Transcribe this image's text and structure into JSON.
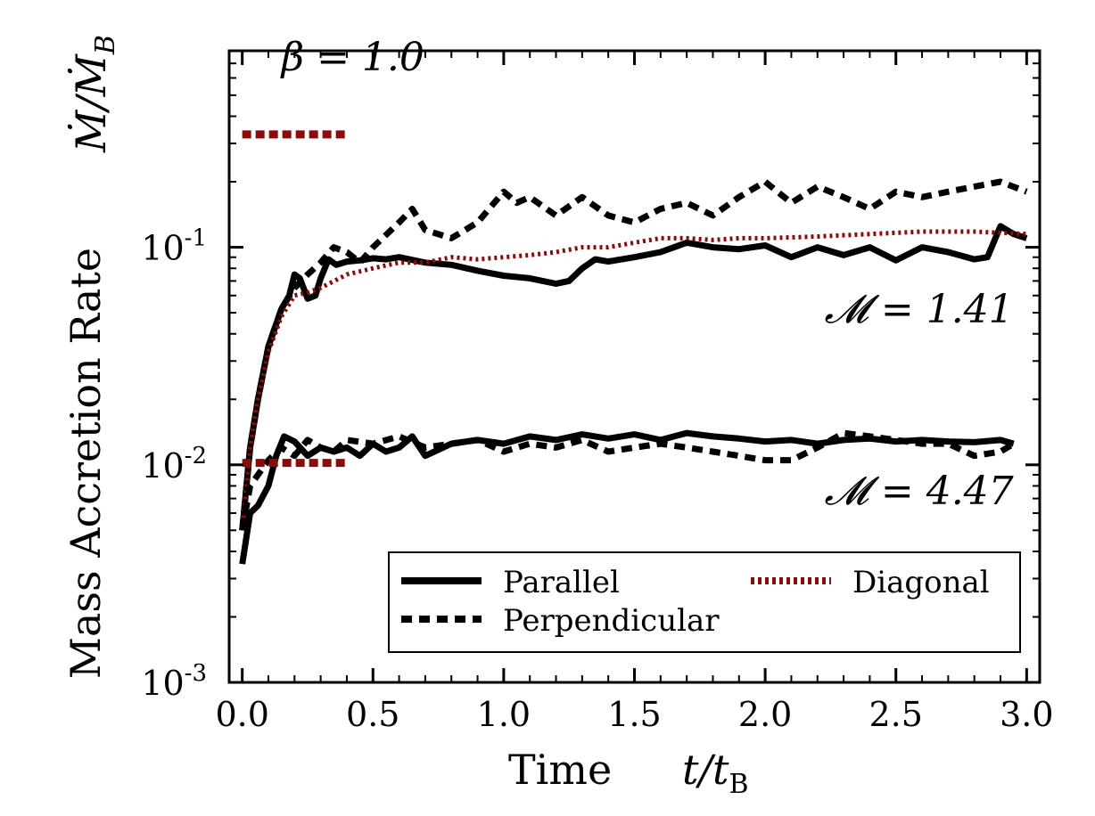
{
  "chart_data": {
    "type": "line",
    "title": "",
    "xlabel": "Time",
    "xlabel_unit": "t/t",
    "xlabel_unit_sub": "B",
    "ylabel": "Mass Accretion Rate",
    "ylabel_top": "Ṁ/Ṁ",
    "ylabel_top_sub": "B",
    "xlim": [
      -0.05,
      3.05
    ],
    "ylim": [
      0.001,
      0.8
    ],
    "yscale": "log",
    "x_ticks": [
      {
        "value": 0.0,
        "label": "0.0"
      },
      {
        "value": 0.5,
        "label": "0.5"
      },
      {
        "value": 1.0,
        "label": "1.0"
      },
      {
        "value": 1.5,
        "label": "1.5"
      },
      {
        "value": 2.0,
        "label": "2.0"
      },
      {
        "value": 2.5,
        "label": "2.5"
      },
      {
        "value": 3.0,
        "label": "3.0"
      }
    ],
    "y_ticks": [
      {
        "value": 0.001,
        "base": "10",
        "exp": "-3"
      },
      {
        "value": 0.01,
        "base": "10",
        "exp": "-2"
      },
      {
        "value": 0.1,
        "base": "10",
        "exp": "-1"
      }
    ],
    "annotations": [
      {
        "text": "β = 1.0",
        "x": 0.15,
        "y": 0.65
      },
      {
        "text": "𝓜 = 1.41",
        "x": 2.95,
        "y": 0.045
      },
      {
        "text": "𝓜 = 4.47",
        "x": 2.95,
        "y": 0.0066
      }
    ],
    "reference_segments": [
      {
        "name": "beta-marker",
        "x": [
          0.0,
          0.4
        ],
        "y": [
          0.33,
          0.33
        ],
        "color": "#8b0a0a"
      },
      {
        "name": "mach-4.47-marker",
        "x": [
          0.0,
          0.4
        ],
        "y": [
          0.0102,
          0.0102
        ],
        "color": "#8b0a0a"
      }
    ],
    "legend": {
      "placement": "lower-right",
      "entries": [
        {
          "label": "Parallel",
          "style": "solid",
          "color": "#000000"
        },
        {
          "label": "Diagonal",
          "style": "dotted",
          "color": "#8b0a0a"
        },
        {
          "label": "Perpendicular",
          "style": "dashed",
          "color": "#000000"
        }
      ]
    },
    "series": [
      {
        "name": "Parallel",
        "group": "M=1.41",
        "style": "solid",
        "color": "#000000",
        "x": [
          0.0,
          0.03,
          0.06,
          0.1,
          0.15,
          0.18,
          0.2,
          0.22,
          0.25,
          0.28,
          0.3,
          0.33,
          0.36,
          0.4,
          0.45,
          0.5,
          0.55,
          0.6,
          0.7,
          0.8,
          0.9,
          1.0,
          1.1,
          1.2,
          1.25,
          1.3,
          1.35,
          1.4,
          1.5,
          1.6,
          1.7,
          1.8,
          1.9,
          2.0,
          2.1,
          2.2,
          2.3,
          2.4,
          2.5,
          2.6,
          2.7,
          2.8,
          2.85,
          2.9,
          2.95,
          3.0
        ],
        "y": [
          0.005,
          0.012,
          0.02,
          0.035,
          0.052,
          0.06,
          0.075,
          0.072,
          0.058,
          0.06,
          0.072,
          0.088,
          0.083,
          0.086,
          0.087,
          0.089,
          0.088,
          0.09,
          0.085,
          0.083,
          0.078,
          0.074,
          0.072,
          0.068,
          0.07,
          0.08,
          0.088,
          0.086,
          0.09,
          0.095,
          0.105,
          0.1,
          0.098,
          0.102,
          0.09,
          0.1,
          0.092,
          0.1,
          0.087,
          0.1,
          0.095,
          0.088,
          0.09,
          0.125,
          0.115,
          0.11
        ]
      },
      {
        "name": "Perpendicular",
        "group": "M=1.41",
        "style": "dashed",
        "color": "#000000",
        "x": [
          0.0,
          0.03,
          0.06,
          0.1,
          0.15,
          0.2,
          0.25,
          0.3,
          0.35,
          0.4,
          0.45,
          0.5,
          0.6,
          0.65,
          0.7,
          0.8,
          0.9,
          1.0,
          1.05,
          1.1,
          1.2,
          1.3,
          1.4,
          1.5,
          1.6,
          1.7,
          1.8,
          1.9,
          2.0,
          2.1,
          2.2,
          2.3,
          2.4,
          2.5,
          2.6,
          2.7,
          2.8,
          2.9,
          3.0
        ],
        "y": [
          0.005,
          0.012,
          0.02,
          0.035,
          0.052,
          0.065,
          0.075,
          0.085,
          0.1,
          0.095,
          0.085,
          0.1,
          0.13,
          0.15,
          0.12,
          0.11,
          0.13,
          0.18,
          0.16,
          0.17,
          0.14,
          0.17,
          0.14,
          0.13,
          0.15,
          0.16,
          0.14,
          0.17,
          0.2,
          0.16,
          0.19,
          0.17,
          0.15,
          0.18,
          0.17,
          0.18,
          0.19,
          0.2,
          0.18
        ]
      },
      {
        "name": "Diagonal",
        "group": "M=1.41",
        "style": "dotted",
        "color": "#8b0a0a",
        "x": [
          0.0,
          0.03,
          0.06,
          0.1,
          0.15,
          0.2,
          0.25,
          0.3,
          0.4,
          0.5,
          0.6,
          0.7,
          0.8,
          0.9,
          1.0,
          1.1,
          1.2,
          1.3,
          1.4,
          1.5,
          1.6,
          1.7,
          1.8,
          1.9,
          2.0,
          2.2,
          2.4,
          2.6,
          2.8,
          3.0
        ],
        "y": [
          0.005,
          0.012,
          0.02,
          0.033,
          0.048,
          0.06,
          0.062,
          0.065,
          0.075,
          0.08,
          0.085,
          0.085,
          0.09,
          0.088,
          0.09,
          0.092,
          0.095,
          0.1,
          0.1,
          0.105,
          0.11,
          0.11,
          0.108,
          0.11,
          0.11,
          0.112,
          0.115,
          0.118,
          0.118,
          0.115
        ]
      },
      {
        "name": "Parallel",
        "group": "M=4.47",
        "style": "solid",
        "color": "#000000",
        "x": [
          0.0,
          0.03,
          0.06,
          0.1,
          0.13,
          0.16,
          0.2,
          0.25,
          0.3,
          0.35,
          0.4,
          0.45,
          0.5,
          0.55,
          0.6,
          0.65,
          0.7,
          0.8,
          0.9,
          1.0,
          1.1,
          1.2,
          1.3,
          1.4,
          1.5,
          1.6,
          1.7,
          1.8,
          1.9,
          2.0,
          2.1,
          2.2,
          2.3,
          2.4,
          2.5,
          2.6,
          2.7,
          2.8,
          2.9,
          2.95
        ],
        "y": [
          0.0035,
          0.006,
          0.0065,
          0.008,
          0.011,
          0.0135,
          0.0128,
          0.011,
          0.012,
          0.0115,
          0.012,
          0.011,
          0.0125,
          0.0115,
          0.012,
          0.0135,
          0.011,
          0.0125,
          0.013,
          0.0125,
          0.0135,
          0.013,
          0.0138,
          0.0132,
          0.0138,
          0.013,
          0.014,
          0.0135,
          0.0132,
          0.0128,
          0.013,
          0.0125,
          0.013,
          0.0132,
          0.0128,
          0.013,
          0.0128,
          0.0127,
          0.013,
          0.0125
        ]
      },
      {
        "name": "Perpendicular",
        "group": "M=4.47",
        "style": "dashed",
        "color": "#000000",
        "x": [
          0.0,
          0.03,
          0.06,
          0.1,
          0.15,
          0.2,
          0.25,
          0.3,
          0.35,
          0.4,
          0.5,
          0.6,
          0.7,
          0.8,
          0.9,
          1.0,
          1.1,
          1.2,
          1.3,
          1.4,
          1.5,
          1.6,
          1.7,
          1.8,
          1.9,
          2.0,
          2.1,
          2.2,
          2.3,
          2.4,
          2.5,
          2.6,
          2.7,
          2.8,
          2.9,
          2.95
        ],
        "y": [
          0.005,
          0.008,
          0.009,
          0.0105,
          0.012,
          0.011,
          0.013,
          0.012,
          0.0115,
          0.013,
          0.0125,
          0.0135,
          0.012,
          0.0125,
          0.013,
          0.0115,
          0.0125,
          0.012,
          0.013,
          0.0115,
          0.012,
          0.0125,
          0.012,
          0.0115,
          0.011,
          0.0105,
          0.0105,
          0.012,
          0.014,
          0.0135,
          0.013,
          0.0125,
          0.0125,
          0.011,
          0.0115,
          0.0125
        ]
      }
    ]
  }
}
